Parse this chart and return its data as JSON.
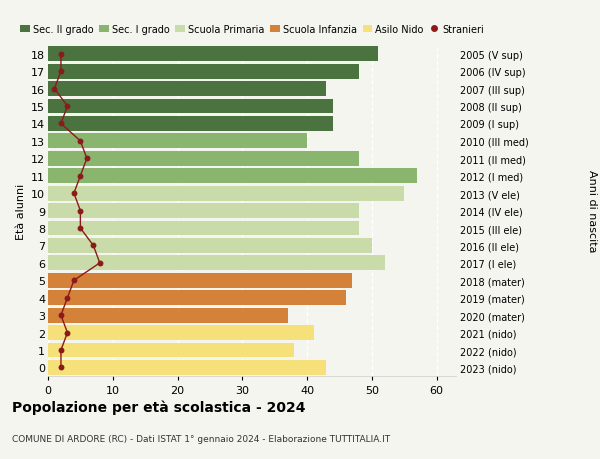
{
  "ages": [
    0,
    1,
    2,
    3,
    4,
    5,
    6,
    7,
    8,
    9,
    10,
    11,
    12,
    13,
    14,
    15,
    16,
    17,
    18
  ],
  "years": [
    "2023 (nido)",
    "2022 (nido)",
    "2021 (nido)",
    "2020 (mater)",
    "2019 (mater)",
    "2018 (mater)",
    "2017 (I ele)",
    "2016 (II ele)",
    "2015 (III ele)",
    "2014 (IV ele)",
    "2013 (V ele)",
    "2012 (I med)",
    "2011 (II med)",
    "2010 (III med)",
    "2009 (I sup)",
    "2008 (II sup)",
    "2007 (III sup)",
    "2006 (IV sup)",
    "2005 (V sup)"
  ],
  "bar_values": [
    43,
    38,
    41,
    37,
    46,
    47,
    52,
    50,
    48,
    48,
    55,
    57,
    48,
    40,
    44,
    44,
    43,
    48,
    51
  ],
  "stranieri": [
    2,
    2,
    3,
    2,
    3,
    4,
    8,
    7,
    5,
    5,
    4,
    5,
    6,
    5,
    2,
    3,
    1,
    2,
    2
  ],
  "bar_colors": {
    "asilo_nido": "#f5e07a",
    "scuola_infanzia": "#d4813a",
    "scuola_primaria": "#c8dba8",
    "sec_I_grado": "#8ab56e",
    "sec_II_grado": "#4a7340"
  },
  "age_to_school": {
    "0": "asilo_nido",
    "1": "asilo_nido",
    "2": "asilo_nido",
    "3": "scuola_infanzia",
    "4": "scuola_infanzia",
    "5": "scuola_infanzia",
    "6": "scuola_primaria",
    "7": "scuola_primaria",
    "8": "scuola_primaria",
    "9": "scuola_primaria",
    "10": "scuola_primaria",
    "11": "sec_I_grado",
    "12": "sec_I_grado",
    "13": "sec_I_grado",
    "14": "sec_II_grado",
    "15": "sec_II_grado",
    "16": "sec_II_grado",
    "17": "sec_II_grado",
    "18": "sec_II_grado"
  },
  "stranieri_color": "#8b1a1a",
  "background_color": "#f5f5f0",
  "title": "Popolazione per età scolastica - 2024",
  "subtitle": "COMUNE DI ARDORE (RC) - Dati ISTAT 1° gennaio 2024 - Elaborazione TUTTITALIA.IT",
  "ylabel_left": "Età alunni",
  "ylabel_right": "Anni di nascita",
  "xlim": [
    0,
    63
  ],
  "ylim": [
    -0.5,
    18.5
  ],
  "xticks": [
    0,
    10,
    20,
    30,
    40,
    50,
    60
  ],
  "legend_labels": [
    "Sec. II grado",
    "Sec. I grado",
    "Scuola Primaria",
    "Scuola Infanzia",
    "Asilo Nido",
    "Stranieri"
  ],
  "legend_colors": [
    "#4a7340",
    "#8ab56e",
    "#c8dba8",
    "#d4813a",
    "#f5e07a",
    "#8b1a1a"
  ]
}
